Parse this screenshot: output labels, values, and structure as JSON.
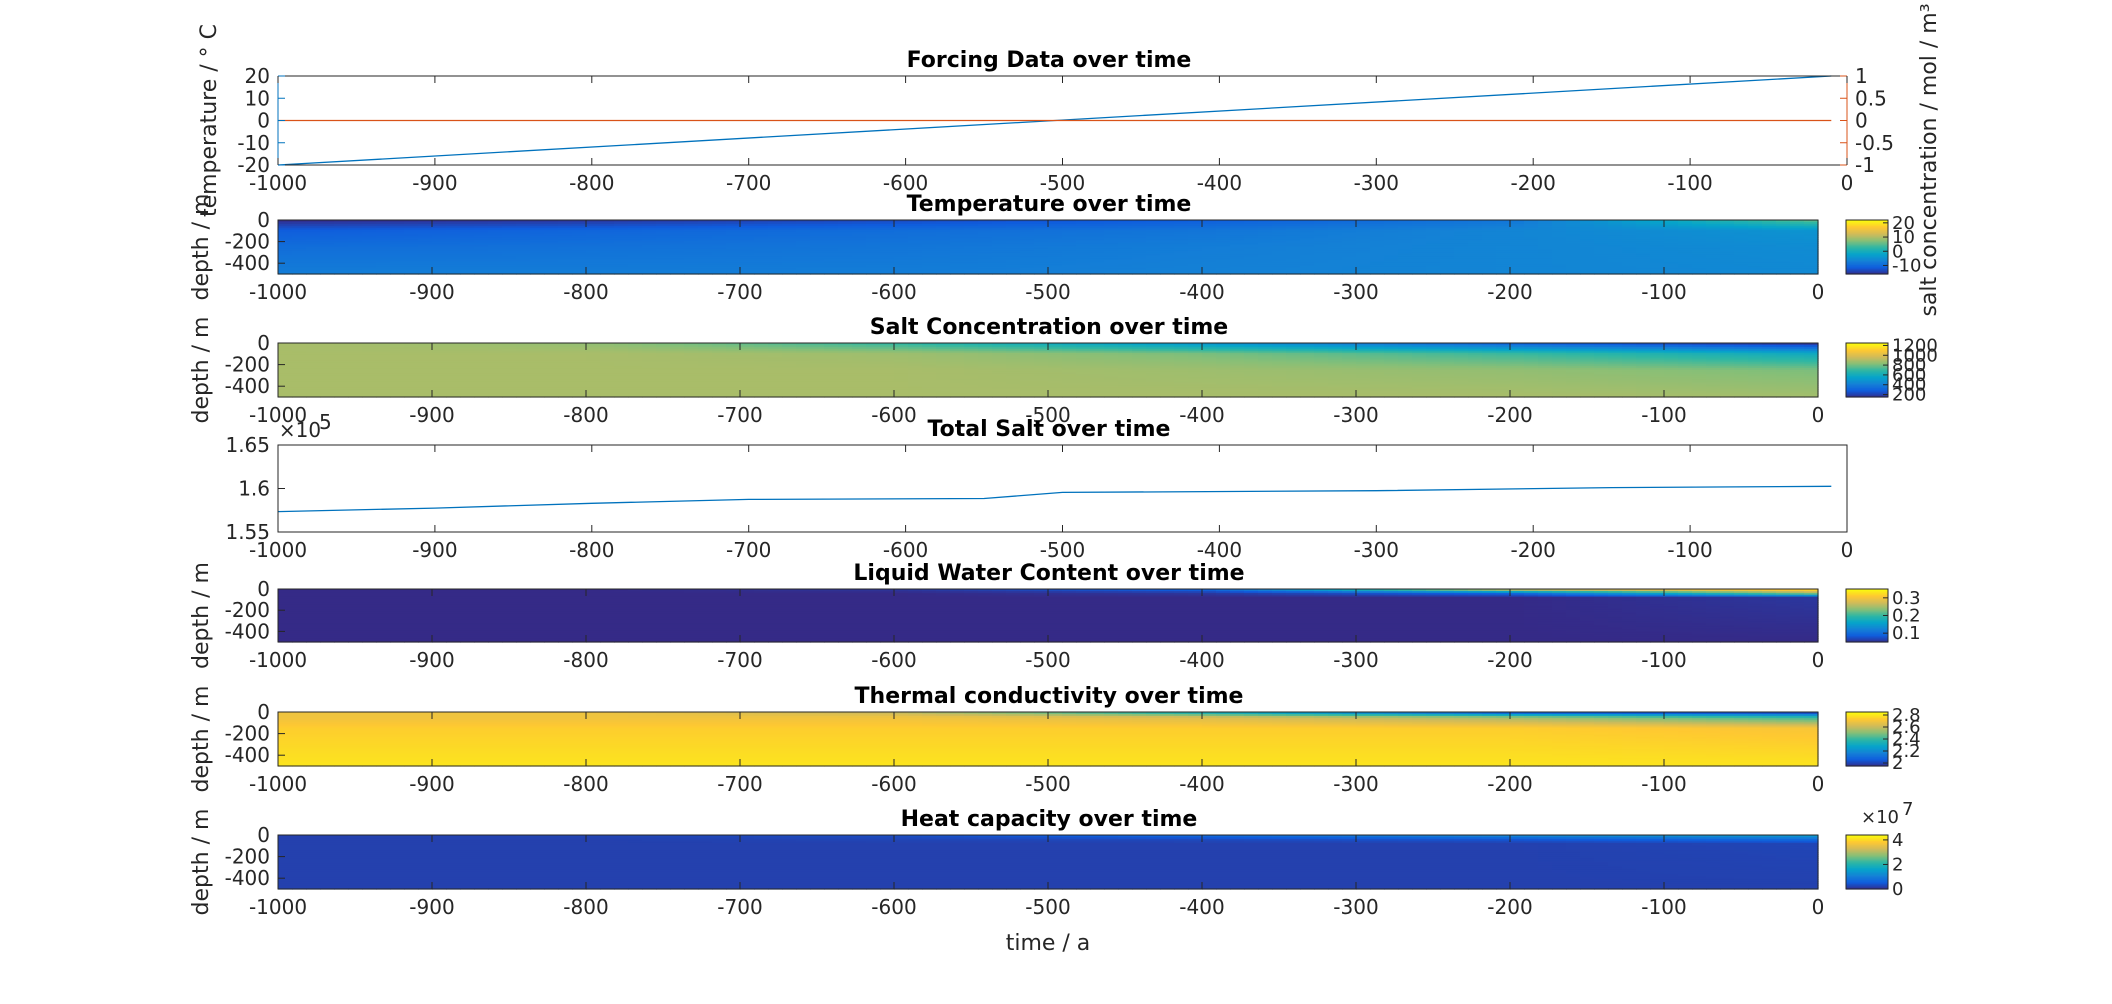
{
  "colors": {
    "temperature_axis": "#0072bd",
    "salt_axis": "#d95319",
    "axes": "#262626",
    "parula": [
      "#352a87",
      "#0f5cdd",
      "#1481d6",
      "#06a4ca",
      "#2eb7a4",
      "#87bf77",
      "#d1bb59",
      "#fec832",
      "#f9fb0e"
    ]
  },
  "chart_data": [
    {
      "id": "forcing",
      "type": "line",
      "title": "Forcing Data over time",
      "xlabel": "",
      "ylabel": "temperature / ° C",
      "ylabel_right": "salt concentration / mol / m³",
      "xlim": [
        -1000,
        0
      ],
      "ylim": [
        -20,
        20
      ],
      "ylim_right": [
        -1,
        1
      ],
      "xticks": [
        "-1000",
        "-900",
        "-800",
        "-700",
        "-600",
        "-500",
        "-400",
        "-300",
        "-200",
        "-100",
        "0"
      ],
      "yticks": [
        "-20",
        "-10",
        "0",
        "10",
        "20"
      ],
      "yticks_right": [
        "-1",
        "-0.5",
        "0",
        "0.5",
        "1"
      ],
      "series": [
        {
          "axis": "left",
          "color": "#0072bd",
          "x": [
            -1000,
            -10
          ],
          "y": [
            -20,
            20
          ]
        },
        {
          "axis": "right",
          "color": "#d95319",
          "x": [
            -1000,
            -10
          ],
          "y": [
            0,
            0
          ]
        }
      ]
    },
    {
      "id": "temperature",
      "type": "heatmap",
      "title": "Temperature over time",
      "xlabel": "",
      "ylabel": "depth / m",
      "xlim": [
        -1000,
        0
      ],
      "ylim": [
        -500,
        0
      ],
      "xticks": [
        "-1000",
        "-900",
        "-800",
        "-700",
        "-600",
        "-500",
        "-400",
        "-300",
        "-200",
        "-100",
        "0"
      ],
      "yticks": [
        "-400",
        "-200",
        "0"
      ],
      "colorbar": {
        "ticks": [
          "-10",
          "0",
          "10",
          "20"
        ],
        "clim": [
          -16,
          22
        ]
      },
      "columns": [
        -1000,
        -800,
        -600,
        -400,
        -200,
        0
      ],
      "depth_levels": [
        0,
        -100,
        -250,
        -500
      ],
      "values": [
        [
          -16,
          -15,
          -13,
          -11,
          -8,
          6
        ],
        [
          -11,
          -10,
          -9,
          -8,
          -6,
          -4
        ],
        [
          -9,
          -8.5,
          -8,
          -7,
          -6,
          -5
        ],
        [
          -7,
          -7,
          -7,
          -6.5,
          -6,
          -5.5
        ]
      ]
    },
    {
      "id": "salt",
      "type": "heatmap",
      "title": "Salt Concentration over time",
      "xlabel": "",
      "ylabel": "depth / m",
      "xlim": [
        -1000,
        0
      ],
      "ylim": [
        -500,
        0
      ],
      "xticks": [
        "-1000",
        "-900",
        "-800",
        "-700",
        "-600",
        "-500",
        "-400",
        "-300",
        "-200",
        "-100",
        "0"
      ],
      "yticks": [
        "-400",
        "-200",
        "0"
      ],
      "colorbar": {
        "ticks": [
          "200",
          "400",
          "600",
          "800",
          "1000",
          "1200"
        ],
        "clim": [
          150,
          1250
        ]
      },
      "columns": [
        -1000,
        -800,
        -600,
        -400,
        -200,
        0
      ],
      "depth_levels": [
        0,
        -100,
        -250,
        -500
      ],
      "values": [
        [
          900,
          860,
          700,
          500,
          300,
          150
        ],
        [
          900,
          900,
          880,
          820,
          720,
          600
        ],
        [
          900,
          900,
          900,
          880,
          860,
          820
        ],
        [
          900,
          900,
          900,
          900,
          900,
          890
        ]
      ]
    },
    {
      "id": "total_salt",
      "type": "line",
      "title": "Total Salt over time",
      "xlabel": "",
      "ylabel": "",
      "exponent_label": "×10",
      "exponent": "5",
      "xlim": [
        -1000,
        0
      ],
      "ylim": [
        1.55,
        1.65
      ],
      "xticks": [
        "-1000",
        "-900",
        "-800",
        "-700",
        "-600",
        "-500",
        "-400",
        "-300",
        "-200",
        "-100",
        "0"
      ],
      "yticks": [
        "1.55",
        "1.6",
        "1.65"
      ],
      "series": [
        {
          "color": "#0072bd",
          "x": [
            -1000,
            -900,
            -800,
            -700,
            -550,
            -500,
            -300,
            -150,
            -10
          ],
          "y": [
            1.5735,
            1.5775,
            1.583,
            1.5875,
            1.5885,
            1.5955,
            1.5975,
            1.601,
            1.6025
          ]
        }
      ]
    },
    {
      "id": "lwc",
      "type": "heatmap",
      "title": "Liquid Water Content over time",
      "xlabel": "",
      "ylabel": "depth / m",
      "xlim": [
        -1000,
        0
      ],
      "ylim": [
        -500,
        0
      ],
      "xticks": [
        "-1000",
        "-900",
        "-800",
        "-700",
        "-600",
        "-500",
        "-400",
        "-300",
        "-200",
        "-100",
        "0"
      ],
      "yticks": [
        "-400",
        "-200",
        "0"
      ],
      "colorbar": {
        "ticks": [
          "0.1",
          "0.2",
          "0.3"
        ],
        "clim": [
          0.05,
          0.35
        ]
      },
      "columns": [
        -1000,
        -800,
        -600,
        -400,
        -200,
        0
      ],
      "depth_levels": [
        0,
        -40,
        -80,
        -500
      ],
      "values": [
        [
          0.05,
          0.05,
          0.06,
          0.1,
          0.3,
          0.34
        ],
        [
          0.05,
          0.05,
          0.05,
          0.06,
          0.1,
          0.25
        ],
        [
          0.05,
          0.05,
          0.05,
          0.05,
          0.05,
          0.06
        ],
        [
          0.05,
          0.05,
          0.05,
          0.05,
          0.05,
          0.05
        ]
      ]
    },
    {
      "id": "thermal",
      "type": "heatmap",
      "title": "Thermal conductivity over time",
      "xlabel": "",
      "ylabel": "depth / m",
      "xlim": [
        -1000,
        0
      ],
      "ylim": [
        -500,
        0
      ],
      "xticks": [
        "-1000",
        "-900",
        "-800",
        "-700",
        "-600",
        "-500",
        "-400",
        "-300",
        "-200",
        "-100",
        "0"
      ],
      "yticks": [
        "-400",
        "-200",
        "0"
      ],
      "colorbar": {
        "ticks": [
          "2",
          "2.2",
          "2.4",
          "2.6",
          "2.8"
        ],
        "clim": [
          1.95,
          2.85
        ]
      },
      "columns": [
        -1000,
        -800,
        -600,
        -400,
        -200,
        0
      ],
      "depth_levels": [
        0,
        -50,
        -150,
        -500
      ],
      "values": [
        [
          2.7,
          2.7,
          2.6,
          2.3,
          2.0,
          1.95
        ],
        [
          2.7,
          2.7,
          2.7,
          2.65,
          2.55,
          2.4
        ],
        [
          2.75,
          2.75,
          2.75,
          2.75,
          2.75,
          2.72
        ],
        [
          2.8,
          2.8,
          2.8,
          2.8,
          2.8,
          2.8
        ]
      ]
    },
    {
      "id": "heatcap",
      "type": "heatmap",
      "title": "Heat capacity over time",
      "xlabel": "time / a",
      "ylabel": "depth / m",
      "xlim": [
        -1000,
        0
      ],
      "ylim": [
        -500,
        0
      ],
      "xticks": [
        "-1000",
        "-900",
        "-800",
        "-700",
        "-600",
        "-500",
        "-400",
        "-300",
        "-200",
        "-100",
        "0"
      ],
      "yticks": [
        "-400",
        "-200",
        "0"
      ],
      "colorbar": {
        "ticks": [
          "0",
          "2",
          "4"
        ],
        "clim": [
          0,
          4.4
        ],
        "exponent_label": "×10",
        "exponent": "7"
      },
      "columns": [
        -1000,
        -800,
        -600,
        -400,
        -200,
        0
      ],
      "depth_levels": [
        0,
        -40,
        -80,
        -500
      ],
      "values": [
        [
          0.25,
          0.3,
          0.4,
          0.8,
          1.3,
          1.6
        ],
        [
          0.25,
          0.25,
          0.3,
          0.35,
          0.5,
          0.8
        ],
        [
          0.25,
          0.25,
          0.25,
          0.25,
          0.25,
          0.3
        ],
        [
          0.25,
          0.25,
          0.25,
          0.25,
          0.25,
          0.25
        ]
      ]
    }
  ]
}
